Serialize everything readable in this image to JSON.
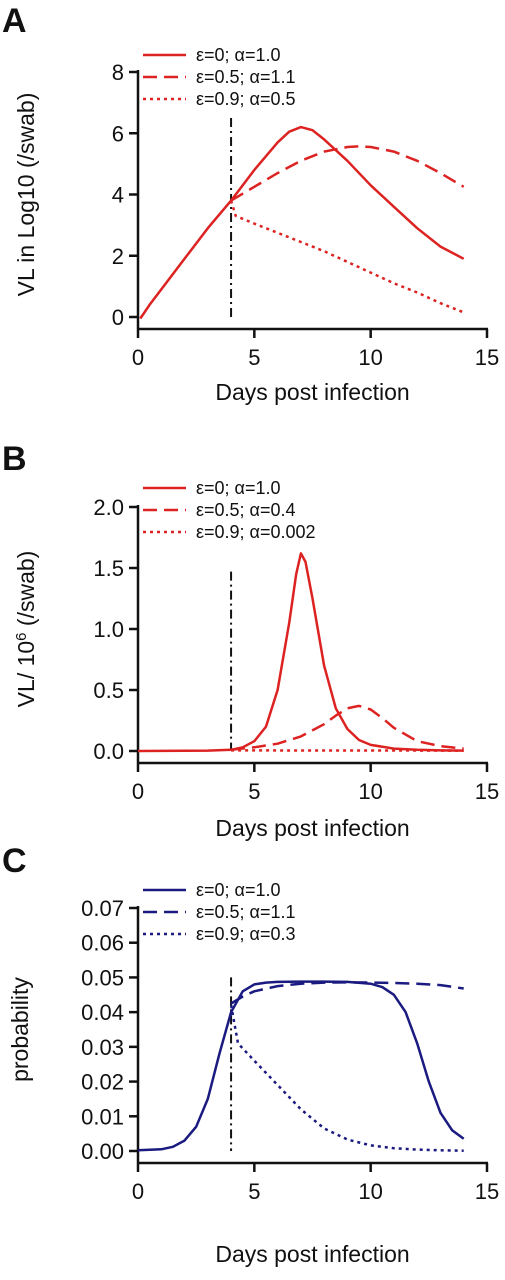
{
  "chart_data": [
    {
      "panel_label": "A",
      "type": "line",
      "xlabel": "Days post infection",
      "ylabel": "VL in Log10 (/swab)",
      "xlim": [
        0,
        15
      ],
      "ylim": [
        0,
        8
      ],
      "xticks": [
        0,
        5,
        10,
        15
      ],
      "yticks": [
        0,
        2,
        4,
        6,
        8
      ],
      "ytick_labels": [
        "0",
        "2",
        "4",
        "6",
        "8"
      ],
      "vline_x": 4,
      "vline_ymax": 6.5,
      "legend_position": "top-left",
      "series": [
        {
          "name": "ε=0; α=1.0",
          "style": "solid",
          "color": "#dd2222",
          "x": [
            0.1,
            0.5,
            1,
            2,
            3,
            4,
            5,
            6,
            6.5,
            7,
            7.5,
            8,
            9,
            10,
            11,
            12,
            13,
            14
          ],
          "y": [
            -0.05,
            0.4,
            0.9,
            1.9,
            2.9,
            3.8,
            4.8,
            5.7,
            6.05,
            6.2,
            6.1,
            5.8,
            5.1,
            4.3,
            3.6,
            2.9,
            2.3,
            1.9
          ]
        },
        {
          "name": "ε=0.5; α=1.1",
          "style": "dashed",
          "color": "#dd2222",
          "x": [
            4,
            5,
            6,
            7,
            8,
            9,
            9.5,
            10,
            11,
            12,
            13,
            14
          ],
          "y": [
            3.8,
            4.25,
            4.7,
            5.1,
            5.4,
            5.55,
            5.57,
            5.55,
            5.4,
            5.1,
            4.7,
            4.25
          ]
        },
        {
          "name": "ε=0.9; α=0.5",
          "style": "dotted",
          "color": "#dd2222",
          "x": [
            4,
            4.2,
            5,
            6,
            7,
            8,
            9,
            10,
            11,
            12,
            13,
            14
          ],
          "y": [
            3.8,
            3.3,
            3.05,
            2.75,
            2.45,
            2.15,
            1.8,
            1.45,
            1.1,
            0.8,
            0.45,
            0.15
          ]
        }
      ]
    },
    {
      "panel_label": "B",
      "type": "line",
      "xlabel": "Days post infection",
      "ylabel": "VL/ 10",
      "ylabel_superscript": "6",
      "ylabel_suffix": " (/swab)",
      "xlim": [
        0,
        15
      ],
      "ylim": [
        0,
        2
      ],
      "xticks": [
        0,
        5,
        10,
        15
      ],
      "yticks": [
        0,
        0.5,
        1,
        1.5,
        2
      ],
      "ytick_labels": [
        "0.0",
        "0.5",
        "1.0",
        "1.5",
        "2.0"
      ],
      "vline_x": 4,
      "vline_ymax": 1.47,
      "legend_position": "top-left",
      "series": [
        {
          "name": "ε=0; α=1.0",
          "style": "solid",
          "color": "#dd2222",
          "x": [
            0,
            3,
            4,
            4.5,
            5,
            5.5,
            6,
            6.5,
            6.8,
            7,
            7.2,
            7.5,
            8,
            8.5,
            9,
            9.5,
            10,
            11,
            12,
            13,
            14
          ],
          "y": [
            0,
            0.003,
            0.01,
            0.03,
            0.08,
            0.2,
            0.5,
            1.05,
            1.45,
            1.62,
            1.55,
            1.25,
            0.7,
            0.35,
            0.18,
            0.09,
            0.05,
            0.02,
            0.01,
            0.005,
            0.003
          ]
        },
        {
          "name": "ε=0.5; α=0.4",
          "style": "dashed",
          "color": "#dd2222",
          "x": [
            4,
            5,
            6,
            7,
            8,
            8.5,
            9,
            9.5,
            10,
            10.5,
            11,
            12,
            13,
            14
          ],
          "y": [
            0.01,
            0.03,
            0.06,
            0.12,
            0.22,
            0.29,
            0.35,
            0.37,
            0.34,
            0.27,
            0.19,
            0.08,
            0.04,
            0.02
          ]
        },
        {
          "name": "ε=0.9; α=0.002",
          "style": "dotted",
          "color": "#dd2222",
          "x": [
            4,
            14
          ],
          "y": [
            0.005,
            0.003
          ]
        }
      ]
    },
    {
      "panel_label": "C",
      "type": "line",
      "xlabel": "Days post infection",
      "ylabel": "probability",
      "xlim": [
        0,
        15
      ],
      "ylim": [
        0,
        0.07
      ],
      "xticks": [
        0,
        5,
        10,
        15
      ],
      "yticks": [
        0,
        0.01,
        0.02,
        0.03,
        0.04,
        0.05,
        0.06,
        0.07
      ],
      "ytick_labels": [
        "0.00",
        "0.01",
        "0.02",
        "0.03",
        "0.04",
        "0.05",
        "0.06",
        "0.07"
      ],
      "vline_x": 4,
      "vline_ymax": 0.05,
      "legend_position": "top-left",
      "series": [
        {
          "name": "ε=0; α=1.0",
          "style": "solid",
          "color": "#1a1a80",
          "x": [
            0,
            1,
            1.5,
            2,
            2.5,
            3,
            3.5,
            4,
            4.5,
            5,
            5.5,
            6,
            7,
            8,
            9,
            10,
            10.5,
            11,
            11.5,
            12,
            12.5,
            13,
            13.5,
            14
          ],
          "y": [
            0.0002,
            0.0005,
            0.0012,
            0.003,
            0.007,
            0.015,
            0.028,
            0.04,
            0.046,
            0.048,
            0.0485,
            0.0487,
            0.0488,
            0.0488,
            0.0487,
            0.0482,
            0.0472,
            0.045,
            0.04,
            0.031,
            0.02,
            0.011,
            0.006,
            0.0035
          ]
        },
        {
          "name": "ε=0.5; α=1.1",
          "style": "dashed",
          "color": "#1a1a80",
          "x": [
            4,
            4.5,
            5,
            6,
            7,
            8,
            9,
            10,
            11,
            12,
            13,
            14
          ],
          "y": [
            0.0425,
            0.0445,
            0.046,
            0.0475,
            0.0482,
            0.0485,
            0.0486,
            0.0485,
            0.0484,
            0.0482,
            0.0478,
            0.0468
          ]
        },
        {
          "name": "ε=0.9; α=0.3",
          "style": "dotted",
          "color": "#1a1a80",
          "x": [
            4,
            4.3,
            5,
            6,
            7,
            8,
            9,
            10,
            11,
            12,
            13,
            14
          ],
          "y": [
            0.042,
            0.031,
            0.026,
            0.019,
            0.012,
            0.0065,
            0.0033,
            0.0016,
            0.0008,
            0.0004,
            0.0002,
            0.0001
          ]
        }
      ]
    }
  ]
}
